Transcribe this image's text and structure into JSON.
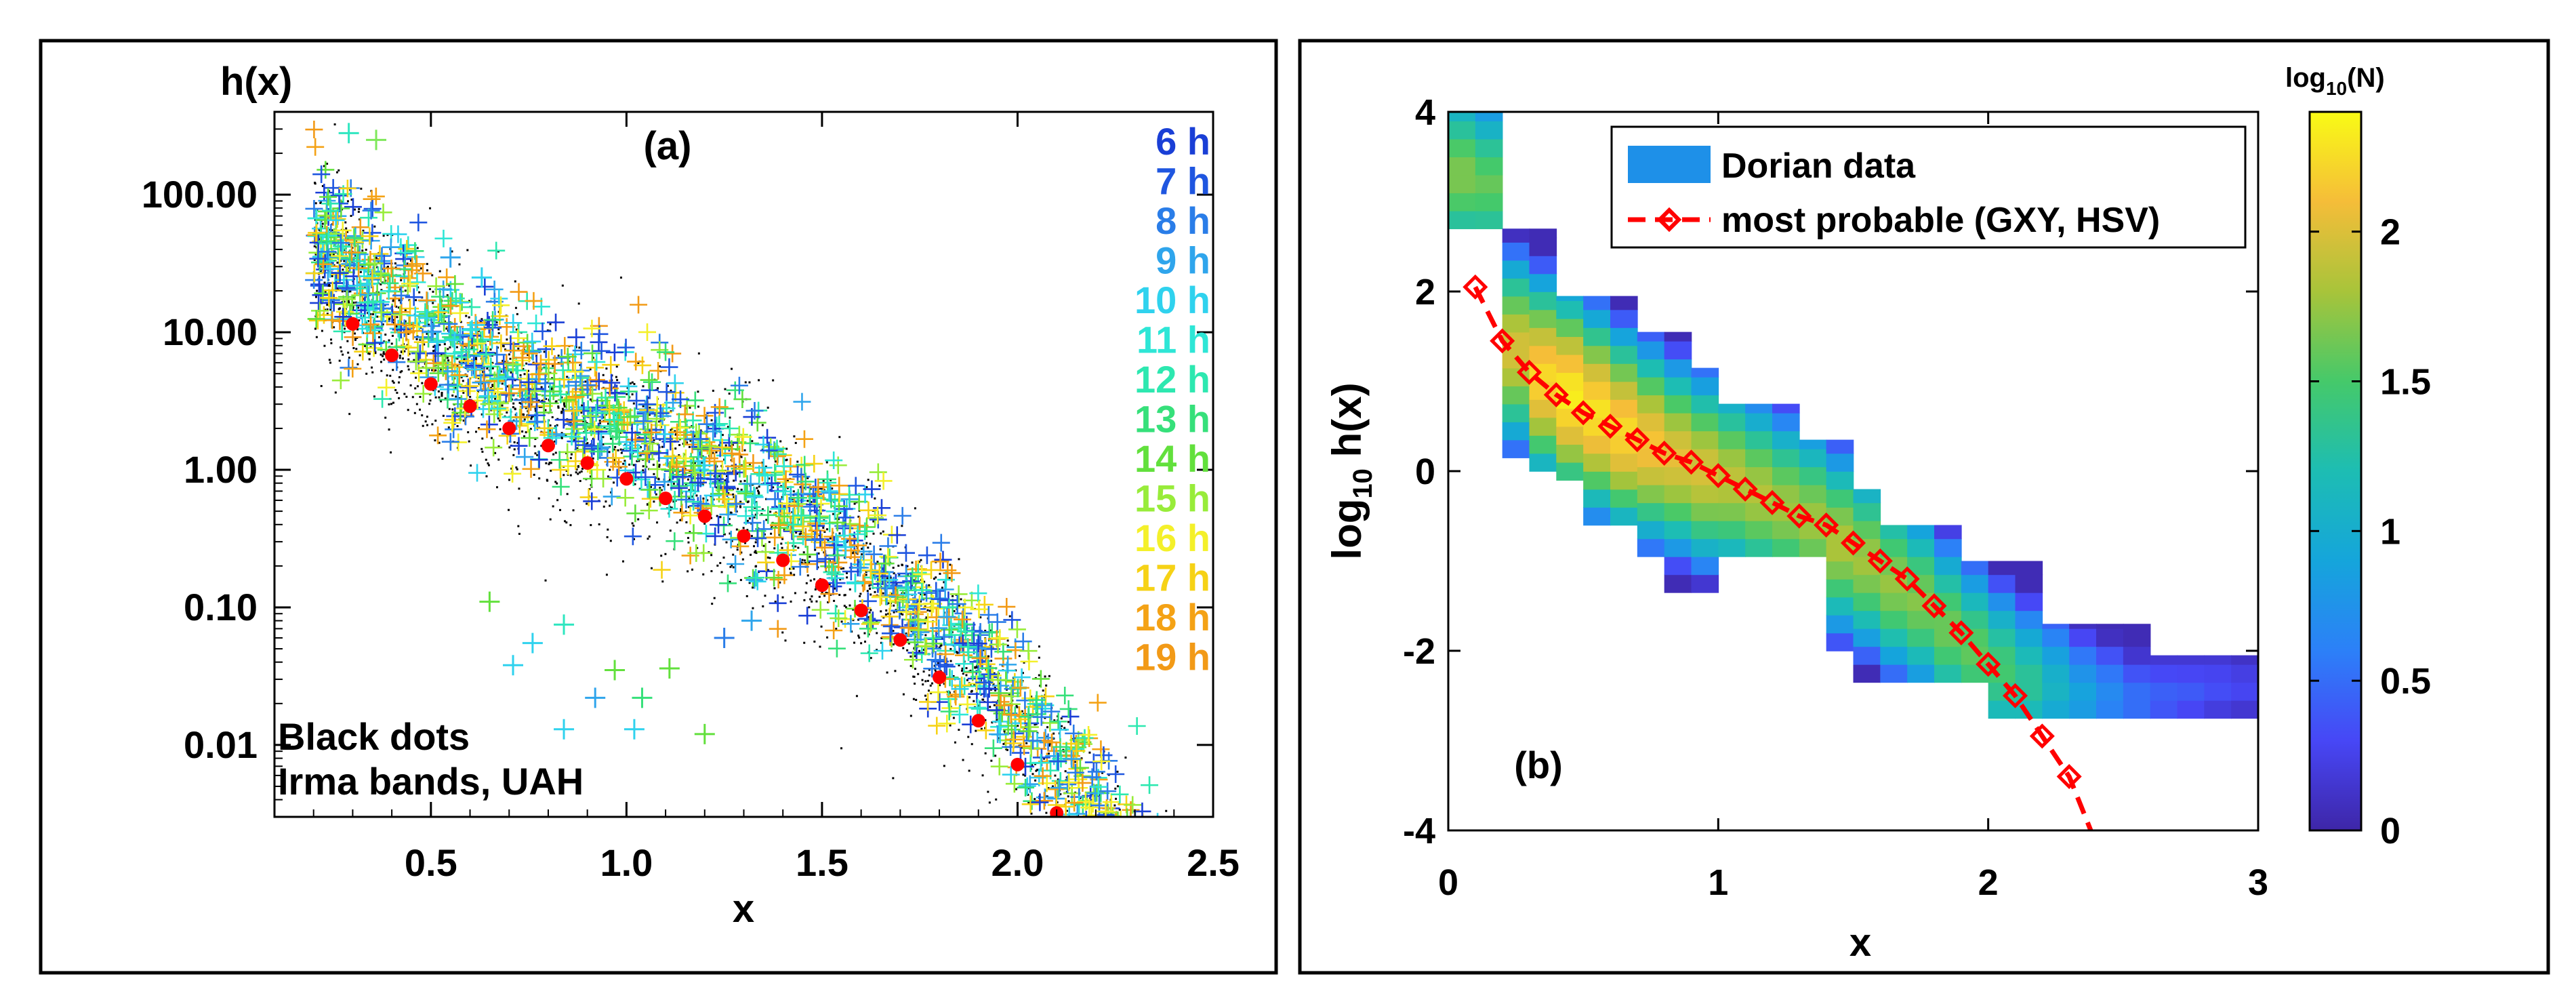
{
  "chart_data": [
    {
      "id": "a",
      "type": "scatter",
      "panel_label": "(a)",
      "title": "",
      "xlabel": "x",
      "ylabel": "h(x)",
      "yscale": "log",
      "xlim": [
        0.1,
        2.5
      ],
      "ylim": [
        0.003,
        400
      ],
      "xticks": [
        0.5,
        1.0,
        1.5,
        2.0,
        2.5
      ],
      "xtick_labels": [
        "0.5",
        "1.0",
        "1.5",
        "2.0",
        "2.5"
      ],
      "yticks": [
        0.01,
        0.1,
        1,
        10,
        100
      ],
      "ytick_labels": [
        "0.01",
        "0.10",
        "1.00",
        "10.00",
        "100.00"
      ],
      "annotation": [
        "Black dots",
        "Irma bands, UAH"
      ],
      "legend": [
        {
          "label": "6 h",
          "color": "#1a3fd6"
        },
        {
          "label": "7 h",
          "color": "#1f56e0"
        },
        {
          "label": "8 h",
          "color": "#2a7de8"
        },
        {
          "label": "9 h",
          "color": "#2fa5ec"
        },
        {
          "label": "10 h",
          "color": "#2fd2ee"
        },
        {
          "label": "11 h",
          "color": "#2ee6d6"
        },
        {
          "label": "12 h",
          "color": "#2de8b0"
        },
        {
          "label": "13 h",
          "color": "#36e07a"
        },
        {
          "label": "14 h",
          "color": "#62e03c"
        },
        {
          "label": "15 h",
          "color": "#98ec3a"
        },
        {
          "label": "16 h",
          "color": "#f4f02a"
        },
        {
          "label": "17 h",
          "color": "#f6d216"
        },
        {
          "label": "18 h",
          "color": "#f4a215"
        },
        {
          "label": "19 h",
          "color": "#f29a17"
        }
      ],
      "most_probable": {
        "x": [
          0.3,
          0.4,
          0.5,
          0.6,
          0.7,
          0.8,
          0.9,
          1.0,
          1.1,
          1.2,
          1.3,
          1.4,
          1.5,
          1.6,
          1.7,
          1.8,
          1.9,
          2.0,
          2.1
        ],
        "y": [
          11.5,
          6.8,
          4.2,
          2.9,
          2.0,
          1.5,
          1.12,
          0.86,
          0.62,
          0.46,
          0.33,
          0.22,
          0.145,
          0.095,
          0.058,
          0.031,
          0.015,
          0.0072,
          0.0032
        ],
        "color": "#ff0000"
      },
      "outlier_points": {
        "x": [
          0.29,
          0.36,
          0.65,
          0.71,
          0.76,
          0.84,
          0.97,
          1.04,
          1.11,
          0.84,
          0.92,
          1.02,
          1.2,
          0.55,
          0.63,
          1.25,
          1.32
        ],
        "y": [
          280,
          250,
          0.11,
          0.038,
          0.055,
          0.075,
          0.035,
          0.022,
          0.036,
          0.013,
          0.022,
          0.013,
          0.012,
          35,
          25,
          0.06,
          0.08
        ],
        "colors": [
          "#2fe6c0",
          "#7ee85a",
          "#62e03c",
          "#2fd2ee",
          "#2fd2ee",
          "#2fe6c0",
          "#62e03c",
          "#36e07a",
          "#62e03c",
          "#2fd2ee",
          "#2fa5ec",
          "#2fd2ee",
          "#62e03c",
          "#2fa5ec",
          "#2fd2ee",
          "#2a7de8",
          "#2fa5ec"
        ]
      }
    },
    {
      "id": "b",
      "type": "heatmap",
      "panel_label": "(b)",
      "title": "",
      "xlabel": "x",
      "ylabel": "log10 h(x)",
      "ylabel_parts": {
        "log": "log",
        "sub": "10",
        "rest": " h(x)"
      },
      "xlim": [
        0,
        3
      ],
      "ylim": [
        -4,
        4
      ],
      "xticks": [
        0,
        1,
        2,
        3
      ],
      "xtick_labels": [
        "0",
        "1",
        "2",
        "3"
      ],
      "yticks": [
        -4,
        -2,
        0,
        2,
        4
      ],
      "ytick_labels": [
        "-4",
        "-2",
        "0",
        "2",
        "4"
      ],
      "colorbar": {
        "label_parts": {
          "log": "log",
          "sub": "10",
          "rest": "(N)"
        },
        "range": [
          0,
          2.4
        ],
        "ticks": [
          0,
          0.5,
          1,
          1.5,
          2
        ],
        "tick_labels": [
          "0",
          "0.5",
          "1",
          "1.5",
          "2"
        ]
      },
      "cell_size": [
        0.1,
        0.2
      ],
      "density_columns": [
        {
          "x0": 0.0,
          "ymin": 2.7,
          "ymax": 4.0,
          "center": 3.3,
          "peak": 1.7
        },
        {
          "x0": 0.1,
          "ymin": 2.7,
          "ymax": 4.0,
          "center": 3.2,
          "peak": 1.6
        },
        {
          "x0": 0.2,
          "ymin": 0.15,
          "ymax": 2.7,
          "center": 1.35,
          "peak": 2.0
        },
        {
          "x0": 0.3,
          "ymin": 0.0,
          "ymax": 2.7,
          "center": 1.05,
          "peak": 2.25
        },
        {
          "x0": 0.4,
          "ymin": -0.1,
          "ymax": 1.95,
          "center": 0.85,
          "peak": 2.35
        },
        {
          "x0": 0.5,
          "ymin": -0.6,
          "ymax": 1.95,
          "center": 0.65,
          "peak": 2.3
        },
        {
          "x0": 0.6,
          "ymin": -0.6,
          "ymax": 1.95,
          "center": 0.45,
          "peak": 2.25
        },
        {
          "x0": 0.7,
          "ymin": -0.95,
          "ymax": 1.55,
          "center": 0.3,
          "peak": 2.15
        },
        {
          "x0": 0.8,
          "ymin": -1.35,
          "ymax": 1.55,
          "center": 0.15,
          "peak": 2.05
        },
        {
          "x0": 0.9,
          "ymin": -1.35,
          "ymax": 1.15,
          "center": 0.0,
          "peak": 2.0
        },
        {
          "x0": 1.0,
          "ymin": -0.95,
          "ymax": 0.75,
          "center": -0.1,
          "peak": 1.9
        },
        {
          "x0": 1.1,
          "ymin": -0.95,
          "ymax": 0.75,
          "center": -0.25,
          "peak": 1.85
        },
        {
          "x0": 1.2,
          "ymin": -0.95,
          "ymax": 0.75,
          "center": -0.4,
          "peak": 1.8
        },
        {
          "x0": 1.3,
          "ymin": -0.95,
          "ymax": 0.35,
          "center": -0.55,
          "peak": 1.8
        },
        {
          "x0": 1.4,
          "ymin": -2.0,
          "ymax": 0.35,
          "center": -0.8,
          "peak": 1.85
        },
        {
          "x0": 1.5,
          "ymin": -2.35,
          "ymax": -0.2,
          "center": -1.0,
          "peak": 1.8
        },
        {
          "x0": 1.6,
          "ymin": -2.35,
          "ymax": -0.6,
          "center": -1.25,
          "peak": 1.75
        },
        {
          "x0": 1.7,
          "ymin": -2.35,
          "ymax": -0.6,
          "center": -1.45,
          "peak": 1.7
        },
        {
          "x0": 1.8,
          "ymin": -2.35,
          "ymax": -0.6,
          "center": -1.75,
          "peak": 1.65
        },
        {
          "x0": 1.9,
          "ymin": -2.35,
          "ymax": -1.0,
          "center": -2.0,
          "peak": 1.6
        },
        {
          "x0": 2.0,
          "ymin": -2.75,
          "ymax": -1.0,
          "center": -2.2,
          "peak": 1.5
        },
        {
          "x0": 2.1,
          "ymin": -2.75,
          "ymax": -1.0,
          "center": -2.35,
          "peak": 1.35
        },
        {
          "x0": 2.2,
          "ymin": -2.75,
          "ymax": -1.7,
          "center": -2.4,
          "peak": 1.1
        },
        {
          "x0": 2.3,
          "ymin": -2.75,
          "ymax": -1.7,
          "center": -2.5,
          "peak": 0.9
        },
        {
          "x0": 2.4,
          "ymin": -2.75,
          "ymax": -1.7,
          "center": -2.5,
          "peak": 0.7
        },
        {
          "x0": 2.5,
          "ymin": -2.75,
          "ymax": -1.7,
          "center": -2.55,
          "peak": 0.55
        },
        {
          "x0": 2.6,
          "ymin": -2.75,
          "ymax": -2.05,
          "center": -2.5,
          "peak": 0.45
        },
        {
          "x0": 2.7,
          "ymin": -2.75,
          "ymax": -2.05,
          "center": -2.45,
          "peak": 0.4
        },
        {
          "x0": 2.8,
          "ymin": -2.75,
          "ymax": -2.05,
          "center": -2.4,
          "peak": 0.35
        },
        {
          "x0": 2.9,
          "ymin": -2.75,
          "ymax": -2.05,
          "center": -2.4,
          "peak": 0.3
        }
      ],
      "legend": [
        {
          "label": "Dorian data",
          "kind": "patch",
          "color": "#1e90e8"
        },
        {
          "label": "most probable (GXY, HSV)",
          "kind": "dashed-diamond",
          "color": "#ff0000"
        }
      ],
      "most_probable": {
        "x": [
          0.1,
          0.2,
          0.3,
          0.4,
          0.5,
          0.6,
          0.7,
          0.8,
          0.9,
          1.0,
          1.1,
          1.2,
          1.3,
          1.4,
          1.5,
          1.6,
          1.7,
          1.8,
          1.9,
          2.0,
          2.1,
          2.2,
          2.3
        ],
        "y": [
          2.05,
          1.45,
          1.1,
          0.85,
          0.65,
          0.5,
          0.35,
          0.2,
          0.1,
          -0.05,
          -0.2,
          -0.35,
          -0.5,
          -0.6,
          -0.8,
          -1.0,
          -1.2,
          -1.5,
          -1.8,
          -2.15,
          -2.5,
          -2.95,
          -3.4
        ],
        "tail": {
          "x": [
            2.3,
            2.38
          ],
          "y": [
            -3.4,
            -4.0
          ]
        },
        "color": "#ff0000"
      }
    }
  ]
}
